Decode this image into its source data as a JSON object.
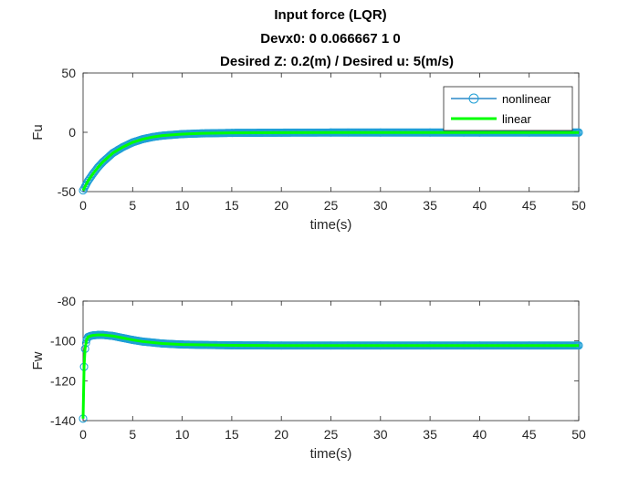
{
  "figure": {
    "title_lines": [
      "Input force (LQR)",
      "Devx0: 0    0.066667           1           0",
      "Desired Z: 0.2(m) / Desired u: 5(m/s)"
    ]
  },
  "colors": {
    "nonlinear": "#0072BD",
    "nonlinear_marker": "#1f9fd6",
    "linear": "#00ff00"
  },
  "chart_data": [
    {
      "type": "line",
      "xlabel": "time(s)",
      "ylabel": "Fu",
      "xlim": [
        0,
        50
      ],
      "ylim": [
        -50,
        50
      ],
      "xticks": [
        0,
        5,
        10,
        15,
        20,
        25,
        30,
        35,
        40,
        45,
        50
      ],
      "yticks": [
        -50,
        0,
        50
      ],
      "grid": false,
      "legend": {
        "position": "top-right",
        "entries": [
          "nonlinear",
          "linear"
        ]
      },
      "series": [
        {
          "name": "nonlinear",
          "style": "line-circle",
          "x": [
            0,
            0.25,
            0.5,
            1,
            1.5,
            2,
            3,
            4,
            5,
            6,
            7,
            8,
            10,
            12,
            15,
            20,
            25,
            30,
            35,
            40,
            45,
            50
          ],
          "y": [
            -49,
            -45,
            -41,
            -35,
            -29.5,
            -25,
            -17.5,
            -12.5,
            -8.5,
            -5.8,
            -4,
            -2.8,
            -1.5,
            -0.9,
            -0.5,
            -0.3,
            -0.2,
            -0.2,
            -0.2,
            -0.2,
            -0.2,
            -0.2
          ]
        },
        {
          "name": "linear",
          "style": "line",
          "x": [
            0,
            0.25,
            0.5,
            1,
            1.5,
            2,
            3,
            4,
            5,
            6,
            7,
            8,
            10,
            12,
            15,
            20,
            25,
            30,
            35,
            40,
            45,
            50
          ],
          "y": [
            -49,
            -45,
            -41,
            -35,
            -29.5,
            -25,
            -17.5,
            -12.5,
            -8.5,
            -5.8,
            -4,
            -2.8,
            -1.5,
            -0.9,
            -0.5,
            -0.3,
            -0.2,
            -0.2,
            -0.2,
            -0.2,
            -0.2,
            -0.2
          ]
        }
      ]
    },
    {
      "type": "line",
      "xlabel": "time(s)",
      "ylabel": "Fw",
      "xlim": [
        0,
        50
      ],
      "ylim": [
        -140,
        -80
      ],
      "xticks": [
        0,
        5,
        10,
        15,
        20,
        25,
        30,
        35,
        40,
        45,
        50
      ],
      "yticks": [
        -140,
        -120,
        -100,
        -80
      ],
      "grid": false,
      "series": [
        {
          "name": "nonlinear",
          "style": "line-circle",
          "x": [
            0,
            0.1,
            0.2,
            0.35,
            0.5,
            0.75,
            1,
            1.5,
            2,
            3,
            4,
            5,
            6,
            8,
            10,
            12,
            15,
            20,
            25,
            30,
            35,
            40,
            45,
            50
          ],
          "y": [
            -139,
            -113,
            -104,
            -99.5,
            -98,
            -97.5,
            -97.2,
            -97,
            -97,
            -97.5,
            -98.5,
            -99.5,
            -100.3,
            -101.3,
            -101.8,
            -102,
            -102.2,
            -102.3,
            -102.3,
            -102.3,
            -102.3,
            -102.3,
            -102.3,
            -102.3
          ]
        },
        {
          "name": "linear",
          "style": "line",
          "x": [
            0,
            0.1,
            0.2,
            0.35,
            0.5,
            0.75,
            1,
            1.5,
            2,
            3,
            4,
            5,
            6,
            8,
            10,
            12,
            15,
            20,
            25,
            30,
            35,
            40,
            45,
            50
          ],
          "y": [
            -139,
            -113,
            -104,
            -99.5,
            -98,
            -97.5,
            -97.2,
            -97,
            -97,
            -97.5,
            -98.5,
            -99.5,
            -100.3,
            -101.3,
            -101.8,
            -102,
            -102.2,
            -102.3,
            -102.3,
            -102.3,
            -102.3,
            -102.3,
            -102.3,
            -102.3
          ]
        }
      ]
    }
  ]
}
